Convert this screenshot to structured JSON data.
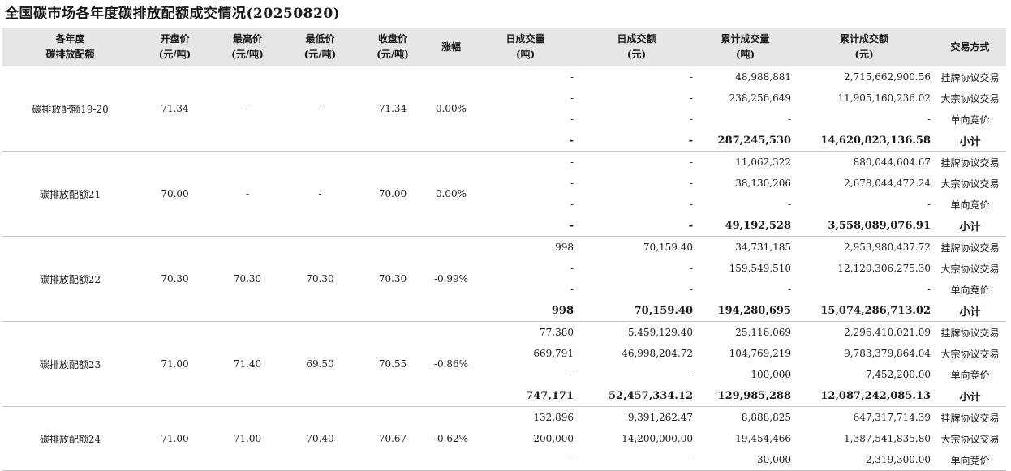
{
  "title": "全国碳市场各年度碳排放配额成交情况(20250820)",
  "headers": [
    "各年度\n碳排放配额",
    "开盘价\n(元/吨)",
    "最高价\n(元/吨)",
    "最低价\n(元/吨)",
    "收盘价\n(元/吨)",
    "涨幅",
    "日成交量\n(吨)",
    "日成交额\n(元)",
    "累计成交量\n(吨)",
    "累计成交额\n(元)",
    "交易方式"
  ],
  "groups": [
    {
      "name": "碳排放配额19-20",
      "open": "71.34",
      "high": "-",
      "low": "-",
      "close": "71.34",
      "change": "0.00%",
      "rows": [
        {
          "vol": "-",
          "amt": "-",
          "cum_vol": "48,988,881",
          "cum_amt": "2,715,662,900.56",
          "method": "挂牌协议交易"
        },
        {
          "vol": "-",
          "amt": "-",
          "cum_vol": "238,256,649",
          "cum_amt": "11,905,160,236.02",
          "method": "大宗协议交易"
        },
        {
          "vol": "-",
          "amt": "-",
          "cum_vol": "-",
          "cum_amt": "-",
          "method": "单向竞价"
        },
        {
          "vol": "-",
          "amt": "-",
          "cum_vol": "287,245,530",
          "cum_amt": "14,620,823,136.58",
          "method": "小计"
        }
      ]
    },
    {
      "name": "碳排放配额21",
      "open": "70.00",
      "high": "-",
      "low": "-",
      "close": "70.00",
      "change": "0.00%",
      "rows": [
        {
          "vol": "-",
          "amt": "-",
          "cum_vol": "11,062,322",
          "cum_amt": "880,044,604.67",
          "method": "挂牌协议交易"
        },
        {
          "vol": "-",
          "amt": "-",
          "cum_vol": "38,130,206",
          "cum_amt": "2,678,044,472.24",
          "method": "大宗协议交易"
        },
        {
          "vol": "-",
          "amt": "-",
          "cum_vol": "-",
          "cum_amt": "-",
          "method": "单向竞价"
        },
        {
          "vol": "-",
          "amt": "-",
          "cum_vol": "49,192,528",
          "cum_amt": "3,558,089,076.91",
          "method": "小计"
        }
      ]
    },
    {
      "name": "碳排放配额22",
      "open": "70.30",
      "high": "70.30",
      "low": "70.30",
      "close": "70.30",
      "change": "-0.99%",
      "rows": [
        {
          "vol": "998",
          "amt": "70,159.40",
          "cum_vol": "34,731,185",
          "cum_amt": "2,953,980,437.72",
          "method": "挂牌协议交易"
        },
        {
          "vol": "-",
          "amt": "-",
          "cum_vol": "159,549,510",
          "cum_amt": "12,120,306,275.30",
          "method": "大宗协议交易"
        },
        {
          "vol": "-",
          "amt": "-",
          "cum_vol": "-",
          "cum_amt": "-",
          "method": "单向竞价"
        },
        {
          "vol": "998",
          "amt": "70,159.40",
          "cum_vol": "194,280,695",
          "cum_amt": "15,074,286,713.02",
          "method": "小计"
        }
      ]
    },
    {
      "name": "碳排放配额23",
      "open": "71.00",
      "high": "71.40",
      "low": "69.50",
      "close": "70.55",
      "change": "-0.86%",
      "rows": [
        {
          "vol": "77,380",
          "amt": "5,459,129.40",
          "cum_vol": "25,116,069",
          "cum_amt": "2,296,410,021.09",
          "method": "挂牌协议交易"
        },
        {
          "vol": "669,791",
          "amt": "46,998,204.72",
          "cum_vol": "104,769,219",
          "cum_amt": "9,783,379,864.04",
          "method": "大宗协议交易"
        },
        {
          "vol": "-",
          "amt": "-",
          "cum_vol": "100,000",
          "cum_amt": "7,452,200.00",
          "method": "单向竞价"
        },
        {
          "vol": "747,171",
          "amt": "52,457,334.12",
          "cum_vol": "129,985,288",
          "cum_amt": "12,087,242,085.13",
          "method": "小计"
        }
      ]
    },
    {
      "name": "碳排放配额24",
      "open": "71.00",
      "high": "71.00",
      "low": "70.40",
      "close": "70.67",
      "change": "-0.62%",
      "rows": [
        {
          "vol": "132,896",
          "amt": "9,391,262.47",
          "cum_vol": "8,888,825",
          "cum_amt": "647,317,714.39",
          "method": "挂牌协议交易"
        },
        {
          "vol": "200,000",
          "amt": "14,200,000.00",
          "cum_vol": "19,454,466",
          "cum_amt": "1,387,541,835.80",
          "method": "大宗协议交易"
        },
        {
          "vol": "-",
          "amt": "-",
          "cum_vol": "30,000",
          "cum_amt": "2,319,300.00",
          "method": "单向竞价"
        }
      ]
    }
  ]
}
